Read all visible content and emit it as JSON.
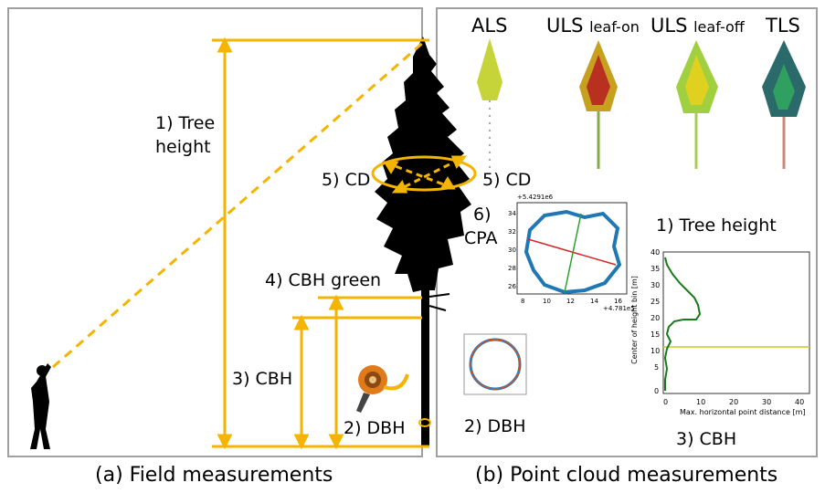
{
  "captions": {
    "left": "(a) Field measurements",
    "right": "(b) Point cloud measurements"
  },
  "field_labels": {
    "tree_height_line1": "1) Tree",
    "tree_height_line2": "height",
    "cd": "5) CD",
    "cbh_green": "4) CBH green",
    "cbh": "3) CBH",
    "dbh": "2) DBH"
  },
  "point_cloud": {
    "sensors": [
      {
        "main": "ALS",
        "sub": ""
      },
      {
        "main": "ULS",
        "sub": "leaf-on"
      },
      {
        "main": "ULS",
        "sub": "leaf-off"
      },
      {
        "main": "TLS",
        "sub": ""
      }
    ],
    "cd": "5) CD",
    "cpa_line1": "6)",
    "cpa_line2": "CPA",
    "tree_height": "1) Tree height",
    "dbh": "2) DBH",
    "cbh": "3) CBH"
  },
  "cpa_plot": {
    "exponent_top": "+5.4291e6",
    "exponent_bottom": "+4.781e5",
    "y_ticks": [
      "34",
      "32",
      "30",
      "28",
      "26"
    ],
    "x_ticks": [
      "8",
      "10",
      "12",
      "14",
      "16"
    ]
  },
  "cbh_plot": {
    "ylabel": "Center of height bin [m]",
    "xlabel": "Max. horizontal point distance [m]",
    "y_ticks": [
      "40",
      "35",
      "30",
      "25",
      "20",
      "15",
      "10",
      "5",
      "0"
    ],
    "x_ticks": [
      "0",
      "10",
      "20",
      "30",
      "40"
    ]
  },
  "colors": {
    "accent": "#f5b400",
    "panel_border": "#a0a0a0",
    "cpa_outline": "#1f77b4",
    "profile_line": "#1a7a1a"
  }
}
